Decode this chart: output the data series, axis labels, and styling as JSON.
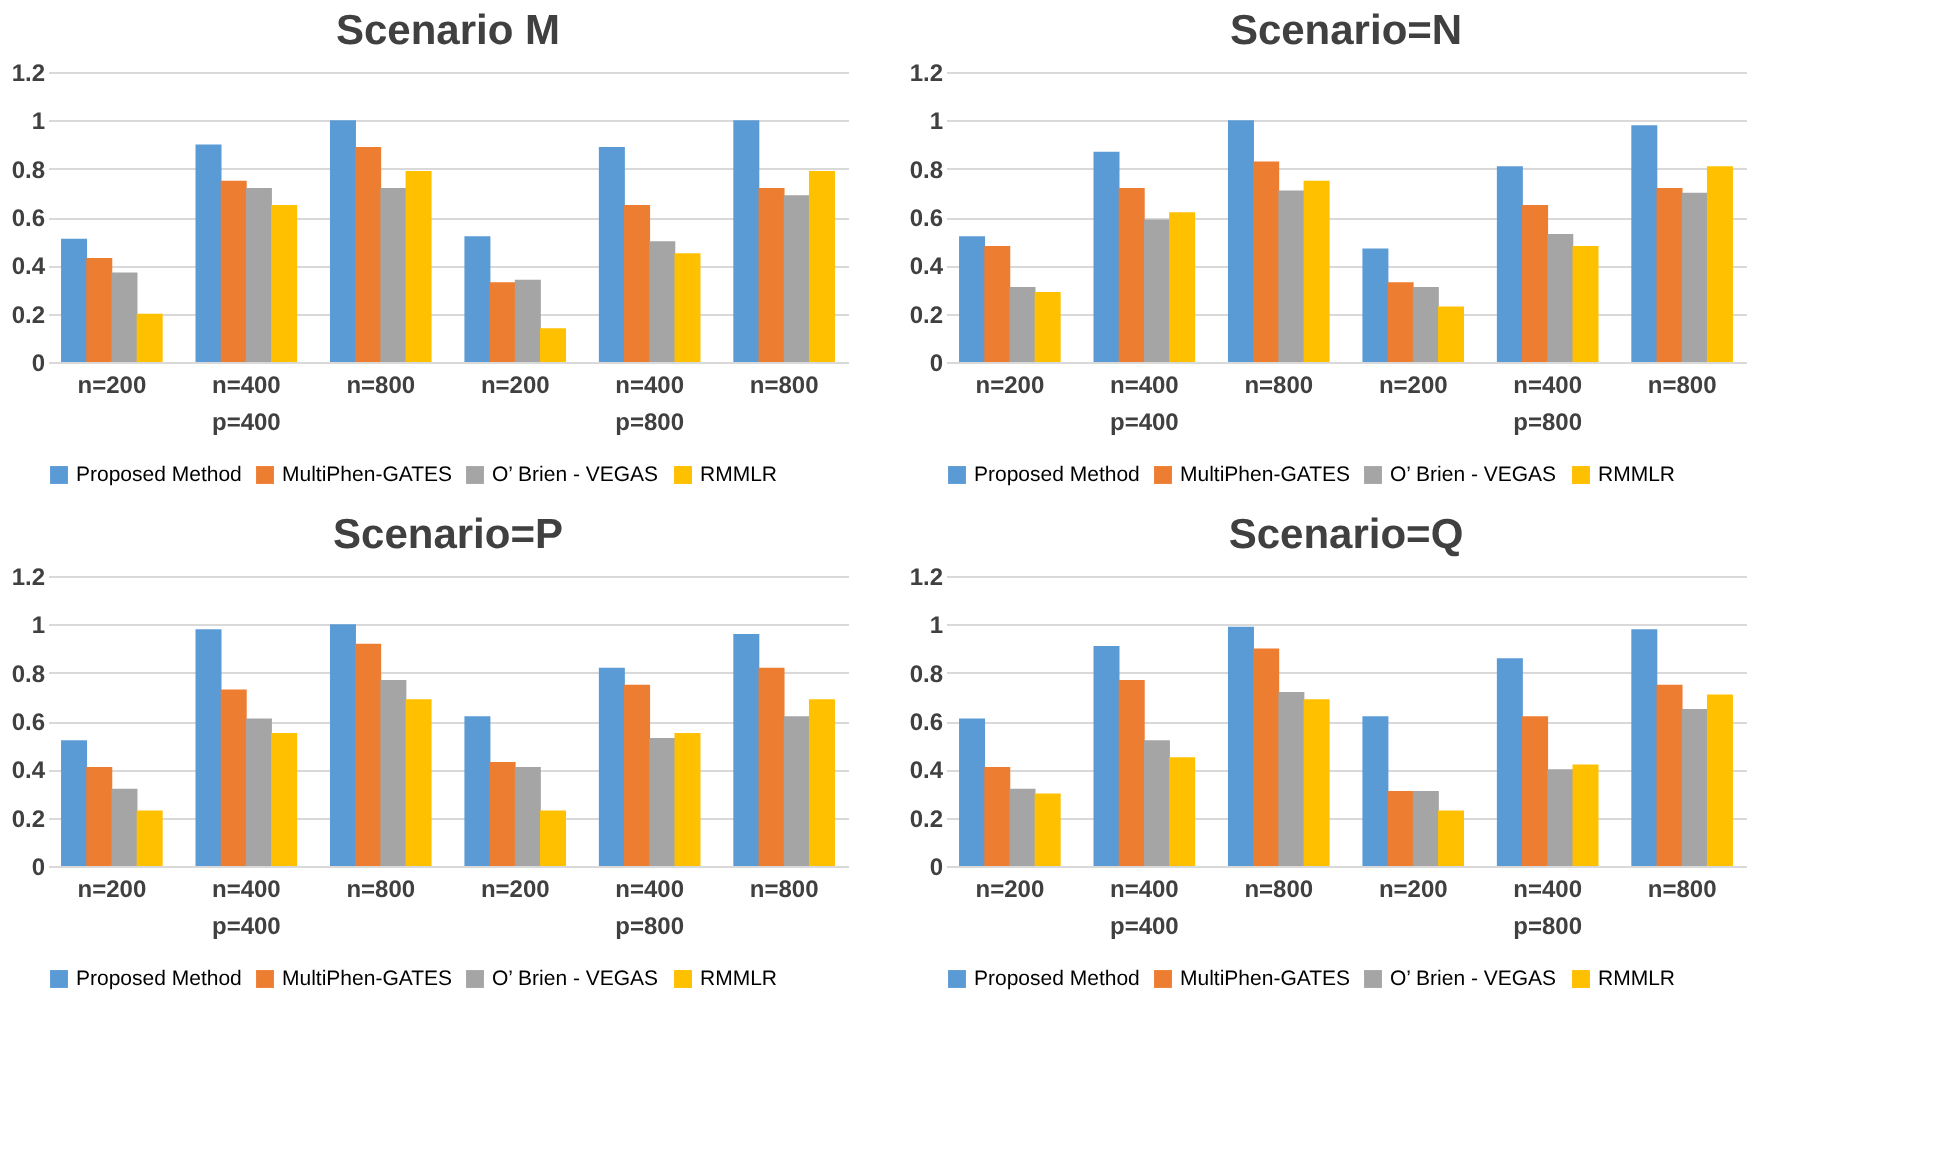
{
  "chart_data": [
    {
      "type": "bar",
      "title": "Scenario M",
      "categories": [
        "n=200",
        "n=400",
        "n=800",
        "n=200",
        "n=400",
        "n=800"
      ],
      "annotations": [
        "p=400",
        "p=800"
      ],
      "ylim": [
        0,
        1.2
      ],
      "yticks": [
        0,
        0.2,
        0.4,
        0.6,
        0.8,
        1,
        1.2
      ],
      "grid": "y",
      "legend": "bottom",
      "series": [
        {
          "name": "Proposed Method",
          "color": "#5b9bd5",
          "values": [
            0.51,
            0.9,
            1.0,
            0.52,
            0.89,
            1.0
          ]
        },
        {
          "name": "MultiPhen-GATES",
          "color": "#ed7d31",
          "values": [
            0.43,
            0.75,
            0.89,
            0.33,
            0.65,
            0.72
          ]
        },
        {
          "name": "O’ Brien - VEGAS",
          "color": "#a5a5a5",
          "values": [
            0.37,
            0.72,
            0.72,
            0.34,
            0.5,
            0.69
          ]
        },
        {
          "name": "RMMLR",
          "color": "#ffc000",
          "values": [
            0.2,
            0.65,
            0.79,
            0.14,
            0.45,
            0.79
          ]
        }
      ]
    },
    {
      "type": "bar",
      "title": "Scenario=N",
      "categories": [
        "n=200",
        "n=400",
        "n=800",
        "n=200",
        "n=400",
        "n=800"
      ],
      "annotations": [
        "p=400",
        "p=800"
      ],
      "ylim": [
        0,
        1.2
      ],
      "yticks": [
        0,
        0.2,
        0.4,
        0.6,
        0.8,
        1,
        1.2
      ],
      "grid": "y",
      "legend": "bottom",
      "series": [
        {
          "name": "Proposed Method",
          "color": "#5b9bd5",
          "values": [
            0.52,
            0.87,
            1.0,
            0.47,
            0.81,
            0.98
          ]
        },
        {
          "name": "MultiPhen-GATES",
          "color": "#ed7d31",
          "values": [
            0.48,
            0.72,
            0.83,
            0.33,
            0.65,
            0.72
          ]
        },
        {
          "name": "O’ Brien - VEGAS",
          "color": "#a5a5a5",
          "values": [
            0.31,
            0.59,
            0.71,
            0.31,
            0.53,
            0.7
          ]
        },
        {
          "name": "RMMLR",
          "color": "#ffc000",
          "values": [
            0.29,
            0.62,
            0.75,
            0.23,
            0.48,
            0.81
          ]
        }
      ]
    },
    {
      "type": "bar",
      "title": "Scenario=P",
      "categories": [
        "n=200",
        "n=400",
        "n=800",
        "n=200",
        "n=400",
        "n=800"
      ],
      "annotations": [
        "p=400",
        "p=800"
      ],
      "ylim": [
        0,
        1.2
      ],
      "yticks": [
        0,
        0.2,
        0.4,
        0.6,
        0.8,
        1,
        1.2
      ],
      "grid": "y",
      "legend": "bottom",
      "series": [
        {
          "name": "Proposed Method",
          "color": "#5b9bd5",
          "values": [
            0.52,
            0.98,
            1.0,
            0.62,
            0.82,
            0.96
          ]
        },
        {
          "name": "MultiPhen-GATES",
          "color": "#ed7d31",
          "values": [
            0.41,
            0.73,
            0.92,
            0.43,
            0.75,
            0.82
          ]
        },
        {
          "name": "O’ Brien - VEGAS",
          "color": "#a5a5a5",
          "values": [
            0.32,
            0.61,
            0.77,
            0.41,
            0.53,
            0.62
          ]
        },
        {
          "name": "RMMLR",
          "color": "#ffc000",
          "values": [
            0.23,
            0.55,
            0.69,
            0.23,
            0.55,
            0.69
          ]
        }
      ]
    },
    {
      "type": "bar",
      "title": "Scenario=Q",
      "categories": [
        "n=200",
        "n=400",
        "n=800",
        "n=200",
        "n=400",
        "n=800"
      ],
      "annotations": [
        "p=400",
        "p=800"
      ],
      "ylim": [
        0,
        1.2
      ],
      "yticks": [
        0,
        0.2,
        0.4,
        0.6,
        0.8,
        1,
        1.2
      ],
      "grid": "y",
      "legend": "bottom",
      "series": [
        {
          "name": "Proposed Method",
          "color": "#5b9bd5",
          "values": [
            0.61,
            0.91,
            0.99,
            0.62,
            0.86,
            0.98
          ]
        },
        {
          "name": "MultiPhen-GATES",
          "color": "#ed7d31",
          "values": [
            0.41,
            0.77,
            0.9,
            0.31,
            0.62,
            0.75
          ]
        },
        {
          "name": "O’ Brien - VEGAS",
          "color": "#a5a5a5",
          "values": [
            0.32,
            0.52,
            0.72,
            0.31,
            0.4,
            0.65
          ]
        },
        {
          "name": "RMMLR",
          "color": "#ffc000",
          "values": [
            0.3,
            0.45,
            0.69,
            0.23,
            0.42,
            0.71
          ]
        }
      ]
    }
  ]
}
